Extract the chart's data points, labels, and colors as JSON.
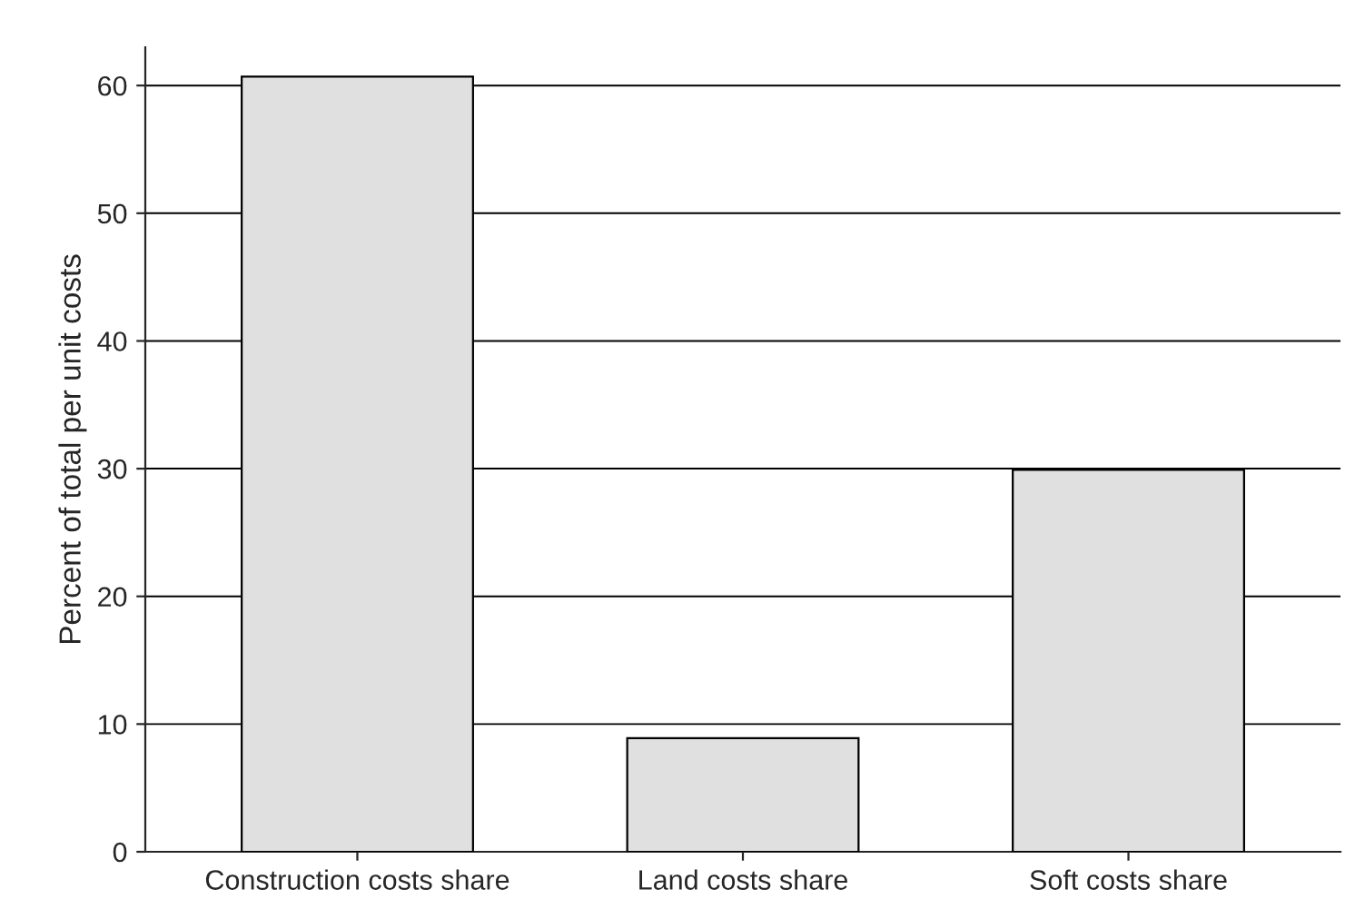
{
  "chart_data": {
    "type": "bar",
    "ylabel": "Percent of total per unit costs",
    "categories": [
      "Construction costs share",
      "Land costs share",
      "Soft costs share"
    ],
    "values": [
      60.7,
      8.9,
      29.9
    ],
    "color": "#e0e0e0",
    "ylim": [
      0,
      63
    ],
    "yticks": [
      0,
      10,
      20,
      30,
      40,
      50,
      60
    ],
    "grid": "y"
  }
}
